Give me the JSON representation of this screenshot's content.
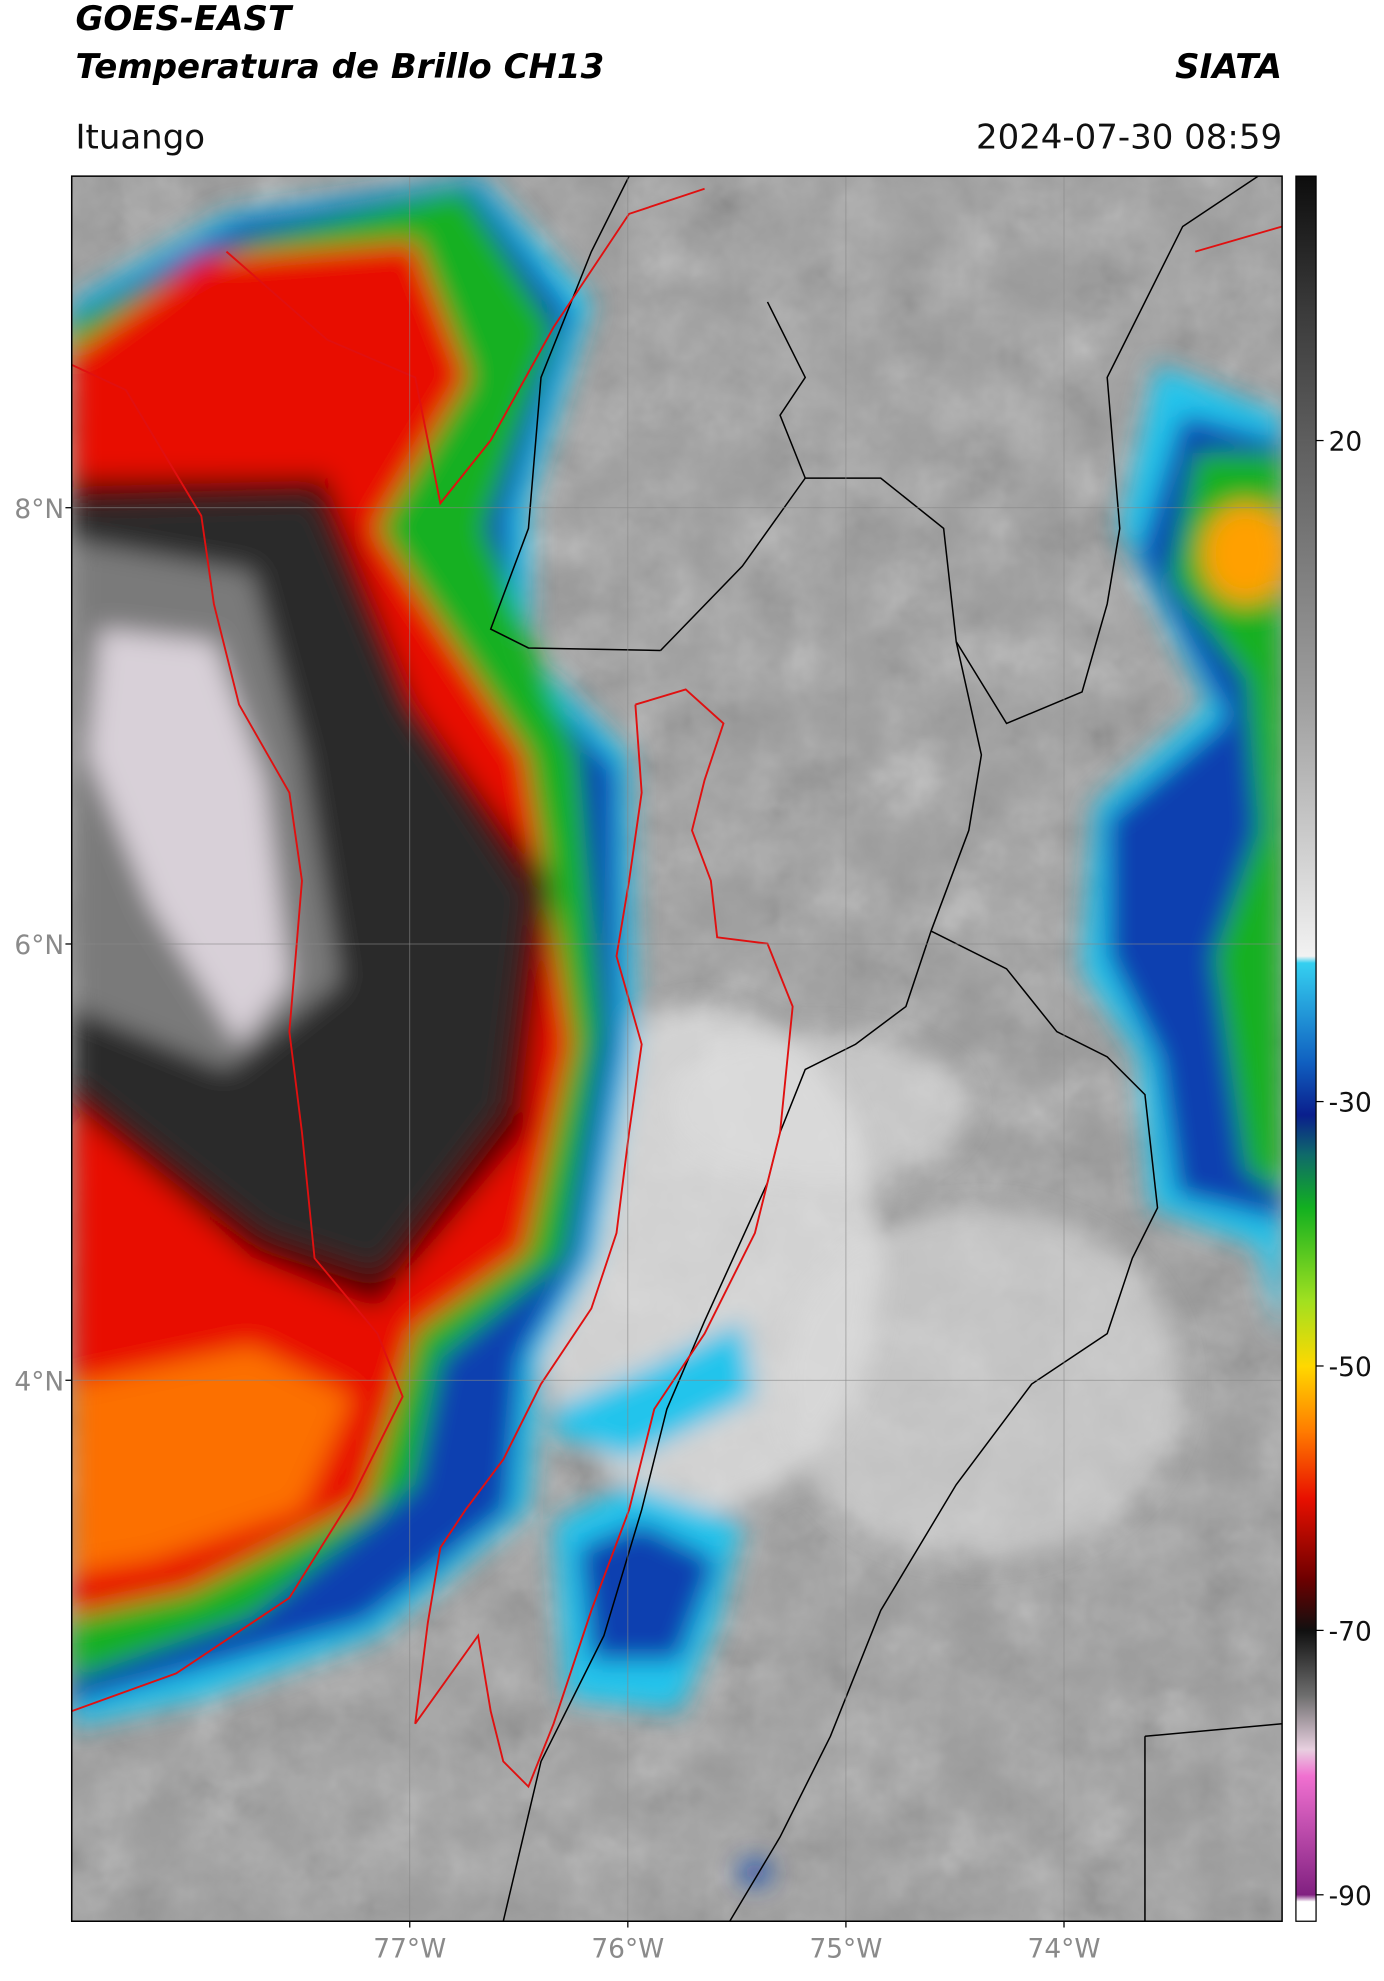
{
  "header": {
    "title": "GOES-EAST",
    "subtitle": "Temperatura de Brillo CH13",
    "agency": "SIATA",
    "location": "Ituango",
    "timestamp": "2024-07-30 08:59"
  },
  "map": {
    "lonlim": [
      -78.55,
      -73
    ],
    "latlim": [
      1.52,
      9.52
    ],
    "grid": true,
    "lonticks": [
      {
        "value": -77,
        "label": "77°W"
      },
      {
        "value": -76,
        "label": "76°W"
      },
      {
        "value": -75,
        "label": "75°W"
      },
      {
        "value": -74,
        "label": "74°W"
      }
    ],
    "latticks": [
      {
        "value": 8,
        "label": "8°N"
      },
      {
        "value": 6,
        "label": "6°N"
      },
      {
        "value": 4,
        "label": "4°N"
      }
    ]
  },
  "colorbar": {
    "lim": [
      -92,
      40
    ],
    "ticks": [
      20,
      -30,
      -50,
      -70,
      -90
    ],
    "colormap": [
      {
        "value": 40,
        "color": "#0d0d0d"
      },
      {
        "value": 30,
        "color": "#3a3a3a"
      },
      {
        "value": 20,
        "color": "#5e5e5e"
      },
      {
        "value": 0,
        "color": "#a0a0a0"
      },
      {
        "value": -19,
        "color": "#f2f2f2"
      },
      {
        "value": -19.5,
        "color": "#35d0f0"
      },
      {
        "value": -27,
        "color": "#1060c0"
      },
      {
        "value": -31,
        "color": "#0a1e8c"
      },
      {
        "value": -34,
        "color": "#0f6a6a"
      },
      {
        "value": -38,
        "color": "#12b020"
      },
      {
        "value": -45,
        "color": "#a0e020"
      },
      {
        "value": -50,
        "color": "#ffd800"
      },
      {
        "value": -55,
        "color": "#ff7a00"
      },
      {
        "value": -60,
        "color": "#e81000"
      },
      {
        "value": -66,
        "color": "#700000"
      },
      {
        "value": -70,
        "color": "#101010"
      },
      {
        "value": -75,
        "color": "#707070"
      },
      {
        "value": -79,
        "color": "#e8d0e0"
      },
      {
        "value": -81,
        "color": "#f070d0"
      },
      {
        "value": -90,
        "color": "#802080"
      },
      {
        "value": -90.5,
        "color": "#ffffff"
      },
      {
        "value": -92,
        "color": "#ffffff"
      }
    ]
  }
}
